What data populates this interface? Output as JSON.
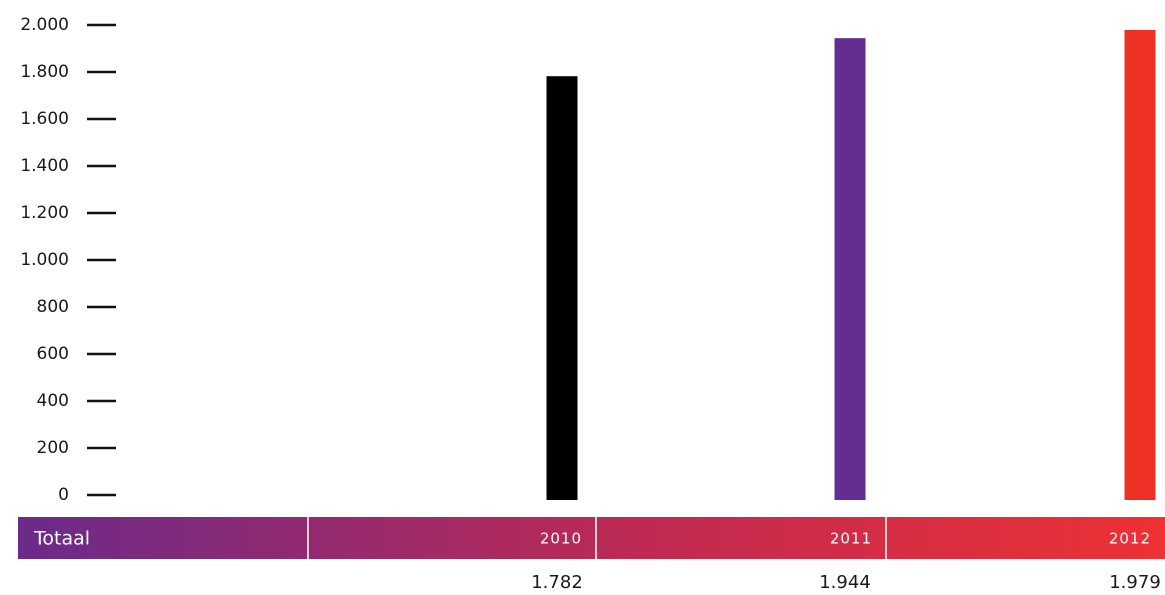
{
  "chart_data": {
    "type": "bar",
    "categories": [
      "2010",
      "2011",
      "2012"
    ],
    "values": [
      1782,
      1944,
      1979
    ],
    "value_labels": [
      "1.782",
      "1.944",
      "1.979"
    ],
    "row_label": "Totaal",
    "ylim": [
      0,
      2000
    ],
    "yticks": [
      {
        "value": 0,
        "label": "0"
      },
      {
        "value": 200,
        "label": "200"
      },
      {
        "value": 400,
        "label": "400"
      },
      {
        "value": 600,
        "label": "600"
      },
      {
        "value": 800,
        "label": "800"
      },
      {
        "value": 1000,
        "label": "1.000"
      },
      {
        "value": 1200,
        "label": "1.200"
      },
      {
        "value": 1400,
        "label": "1.400"
      },
      {
        "value": 1600,
        "label": "1.600"
      },
      {
        "value": 1800,
        "label": "1.800"
      },
      {
        "value": 2000,
        "label": "2.000"
      }
    ],
    "bar_colors": [
      "#000000",
      "#662d91",
      "#ee3124"
    ],
    "band_gradient": [
      "#6b2a8a",
      "#c02a52",
      "#ee3134"
    ],
    "grid": false,
    "legend": "none"
  }
}
